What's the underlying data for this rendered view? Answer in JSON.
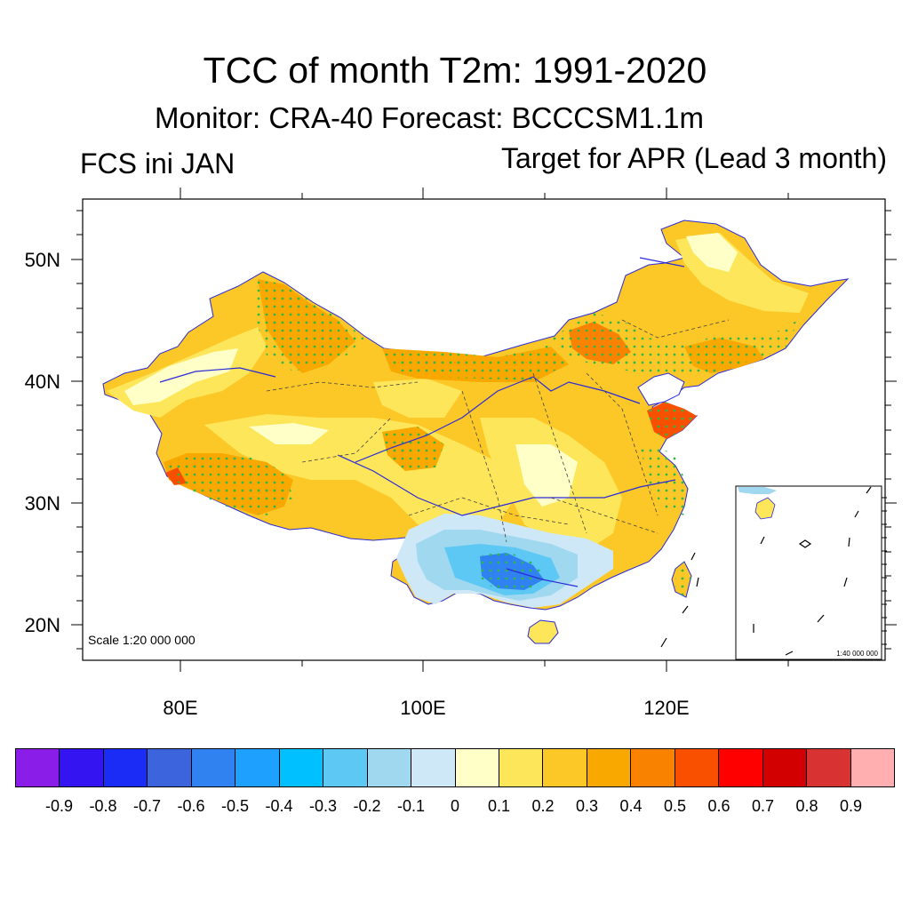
{
  "title": "TCC of month T2m: 1991-2020",
  "subtitle": "Monitor: CRA-40   Forecast: BCCCSM1.1m",
  "left_label": "FCS ini JAN",
  "right_label": "Target for APR (Lead 3 month)",
  "map": {
    "lat_ticks": [
      "50N",
      "40N",
      "30N",
      "20N"
    ],
    "lon_ticks": [
      "80E",
      "100E",
      "120E"
    ],
    "scale_main": "Scale 1:20 000 000",
    "scale_inset": "1:40 000 000"
  },
  "legend": {
    "labels": [
      "-0.9",
      "-0.8",
      "-0.7",
      "-0.6",
      "-0.5",
      "-0.4",
      "-0.3",
      "-0.2",
      "-0.1",
      "0",
      "0.1",
      "0.2",
      "0.3",
      "0.4",
      "0.5",
      "0.6",
      "0.7",
      "0.8",
      "0.9"
    ],
    "colors": [
      "#8a1ee8",
      "#3414f0",
      "#1a2cf5",
      "#3c64dc",
      "#2f82f0",
      "#1ea0ff",
      "#00c0ff",
      "#5ec8f5",
      "#a0d8f0",
      "#cfe8f7",
      "#ffffc8",
      "#fde65a",
      "#fcc828",
      "#f9a800",
      "#f98200",
      "#f95000",
      "#ff0000",
      "#d20000",
      "#d93232",
      "#ffafaf"
    ]
  }
}
